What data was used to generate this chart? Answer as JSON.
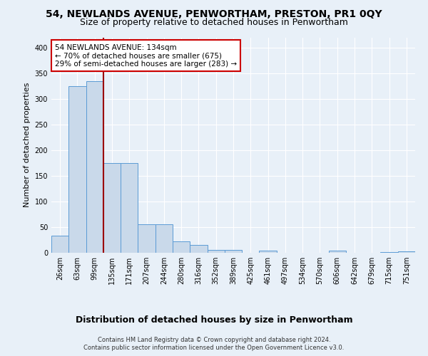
{
  "title": "54, NEWLANDS AVENUE, PENWORTHAM, PRESTON, PR1 0QY",
  "subtitle": "Size of property relative to detached houses in Penwortham",
  "xlabel": "Distribution of detached houses by size in Penwortham",
  "ylabel": "Number of detached properties",
  "footnote1": "Contains HM Land Registry data © Crown copyright and database right 2024.",
  "footnote2": "Contains public sector information licensed under the Open Government Licence v3.0.",
  "categories": [
    "26sqm",
    "63sqm",
    "99sqm",
    "135sqm",
    "171sqm",
    "207sqm",
    "244sqm",
    "280sqm",
    "316sqm",
    "352sqm",
    "389sqm",
    "425sqm",
    "461sqm",
    "497sqm",
    "534sqm",
    "570sqm",
    "606sqm",
    "642sqm",
    "679sqm",
    "715sqm",
    "751sqm"
  ],
  "values": [
    33,
    325,
    335,
    175,
    175,
    55,
    55,
    22,
    15,
    5,
    5,
    0,
    4,
    0,
    0,
    0,
    4,
    0,
    0,
    2,
    3
  ],
  "bar_color": "#c9d9ea",
  "bar_edge_color": "#5b9bd5",
  "highlight_index": 3,
  "vline_color": "#9b0000",
  "annotation_text": "54 NEWLANDS AVENUE: 134sqm\n← 70% of detached houses are smaller (675)\n29% of semi-detached houses are larger (283) →",
  "annotation_box_color": "white",
  "annotation_box_edge": "#cc0000",
  "background_color": "#e8f0f8",
  "plot_bg_color": "#eef2f8",
  "ylim": [
    0,
    420
  ],
  "yticks": [
    0,
    50,
    100,
    150,
    200,
    250,
    300,
    350,
    400
  ],
  "title_fontsize": 10,
  "subtitle_fontsize": 9,
  "ylabel_fontsize": 8,
  "xlabel_fontsize": 9,
  "tick_fontsize": 7,
  "annotation_fontsize": 7.5,
  "footnote_fontsize": 6
}
